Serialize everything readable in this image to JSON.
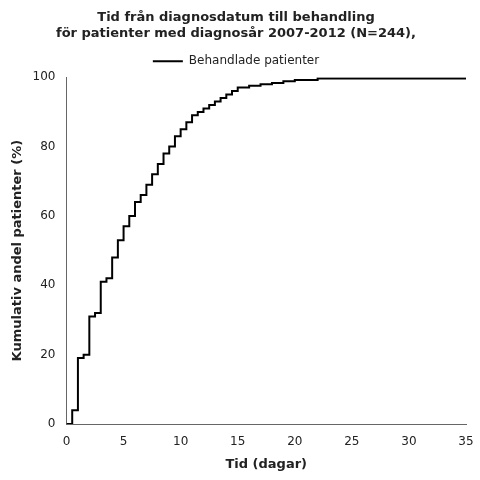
{
  "chart_data": {
    "type": "step",
    "title": [
      "Tid från diagnosdatum till behandling",
      "för patienter med diagnosår 2007-2012 (N=244),"
    ],
    "x_label": "Tid (dagar)",
    "y_label": "Kumulativ andel patienter (%)",
    "x": [
      0,
      0.5,
      1,
      1.5,
      2,
      2.5,
      3,
      3.5,
      4,
      4.5,
      5,
      5.5,
      6,
      6.5,
      7,
      7.5,
      8,
      8.5,
      9,
      9.5,
      10,
      10.5,
      11,
      11.5,
      12,
      12.5,
      13,
      13.5,
      14,
      14.5,
      15,
      16,
      17,
      18,
      19,
      20,
      21,
      22,
      23,
      25,
      28,
      30,
      32,
      35
    ],
    "series": [
      {
        "name": "Behandlade patienter",
        "color": "#000000",
        "values": [
          0,
          4,
          19,
          20,
          31,
          32,
          41,
          42,
          48,
          53,
          57,
          60,
          64,
          66,
          69,
          72,
          75,
          78,
          80,
          83,
          85,
          87,
          89,
          90,
          91,
          92,
          93,
          94,
          95,
          96,
          97,
          97.5,
          98,
          98.3,
          98.8,
          99.2,
          99.2,
          99.6,
          99.6,
          99.6,
          99.6,
          99.6,
          99.6,
          99.6
        ]
      }
    ],
    "xlim": [
      0,
      35
    ],
    "ylim": [
      0,
      100
    ],
    "xticks": [
      0,
      5,
      10,
      15,
      20,
      25,
      30,
      35
    ],
    "yticks": [
      0,
      20,
      40,
      60,
      80,
      100
    ],
    "grid": false,
    "legend": "top"
  }
}
